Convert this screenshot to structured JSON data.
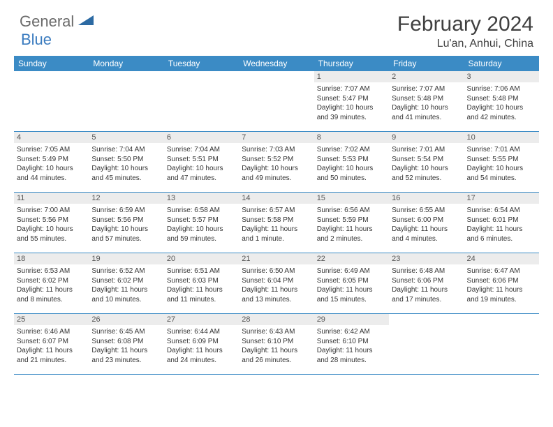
{
  "logo": {
    "text1": "General",
    "text2": "Blue"
  },
  "title": "February 2024",
  "location": "Lu'an, Anhui, China",
  "colors": {
    "header_bar": "#3b8bc5",
    "day_num_bg": "#ececec",
    "border": "#3b8bc5",
    "logo_gray": "#6b6b6b",
    "logo_blue": "#3a7bbf",
    "text": "#404040"
  },
  "weekdays": [
    "Sunday",
    "Monday",
    "Tuesday",
    "Wednesday",
    "Thursday",
    "Friday",
    "Saturday"
  ],
  "weeks": [
    [
      {
        "empty": true
      },
      {
        "empty": true
      },
      {
        "empty": true
      },
      {
        "empty": true
      },
      {
        "day": "1",
        "sunrise": "Sunrise: 7:07 AM",
        "sunset": "Sunset: 5:47 PM",
        "daylight1": "Daylight: 10 hours",
        "daylight2": "and 39 minutes."
      },
      {
        "day": "2",
        "sunrise": "Sunrise: 7:07 AM",
        "sunset": "Sunset: 5:48 PM",
        "daylight1": "Daylight: 10 hours",
        "daylight2": "and 41 minutes."
      },
      {
        "day": "3",
        "sunrise": "Sunrise: 7:06 AM",
        "sunset": "Sunset: 5:48 PM",
        "daylight1": "Daylight: 10 hours",
        "daylight2": "and 42 minutes."
      }
    ],
    [
      {
        "day": "4",
        "sunrise": "Sunrise: 7:05 AM",
        "sunset": "Sunset: 5:49 PM",
        "daylight1": "Daylight: 10 hours",
        "daylight2": "and 44 minutes."
      },
      {
        "day": "5",
        "sunrise": "Sunrise: 7:04 AM",
        "sunset": "Sunset: 5:50 PM",
        "daylight1": "Daylight: 10 hours",
        "daylight2": "and 45 minutes."
      },
      {
        "day": "6",
        "sunrise": "Sunrise: 7:04 AM",
        "sunset": "Sunset: 5:51 PM",
        "daylight1": "Daylight: 10 hours",
        "daylight2": "and 47 minutes."
      },
      {
        "day": "7",
        "sunrise": "Sunrise: 7:03 AM",
        "sunset": "Sunset: 5:52 PM",
        "daylight1": "Daylight: 10 hours",
        "daylight2": "and 49 minutes."
      },
      {
        "day": "8",
        "sunrise": "Sunrise: 7:02 AM",
        "sunset": "Sunset: 5:53 PM",
        "daylight1": "Daylight: 10 hours",
        "daylight2": "and 50 minutes."
      },
      {
        "day": "9",
        "sunrise": "Sunrise: 7:01 AM",
        "sunset": "Sunset: 5:54 PM",
        "daylight1": "Daylight: 10 hours",
        "daylight2": "and 52 minutes."
      },
      {
        "day": "10",
        "sunrise": "Sunrise: 7:01 AM",
        "sunset": "Sunset: 5:55 PM",
        "daylight1": "Daylight: 10 hours",
        "daylight2": "and 54 minutes."
      }
    ],
    [
      {
        "day": "11",
        "sunrise": "Sunrise: 7:00 AM",
        "sunset": "Sunset: 5:56 PM",
        "daylight1": "Daylight: 10 hours",
        "daylight2": "and 55 minutes."
      },
      {
        "day": "12",
        "sunrise": "Sunrise: 6:59 AM",
        "sunset": "Sunset: 5:56 PM",
        "daylight1": "Daylight: 10 hours",
        "daylight2": "and 57 minutes."
      },
      {
        "day": "13",
        "sunrise": "Sunrise: 6:58 AM",
        "sunset": "Sunset: 5:57 PM",
        "daylight1": "Daylight: 10 hours",
        "daylight2": "and 59 minutes."
      },
      {
        "day": "14",
        "sunrise": "Sunrise: 6:57 AM",
        "sunset": "Sunset: 5:58 PM",
        "daylight1": "Daylight: 11 hours",
        "daylight2": "and 1 minute."
      },
      {
        "day": "15",
        "sunrise": "Sunrise: 6:56 AM",
        "sunset": "Sunset: 5:59 PM",
        "daylight1": "Daylight: 11 hours",
        "daylight2": "and 2 minutes."
      },
      {
        "day": "16",
        "sunrise": "Sunrise: 6:55 AM",
        "sunset": "Sunset: 6:00 PM",
        "daylight1": "Daylight: 11 hours",
        "daylight2": "and 4 minutes."
      },
      {
        "day": "17",
        "sunrise": "Sunrise: 6:54 AM",
        "sunset": "Sunset: 6:01 PM",
        "daylight1": "Daylight: 11 hours",
        "daylight2": "and 6 minutes."
      }
    ],
    [
      {
        "day": "18",
        "sunrise": "Sunrise: 6:53 AM",
        "sunset": "Sunset: 6:02 PM",
        "daylight1": "Daylight: 11 hours",
        "daylight2": "and 8 minutes."
      },
      {
        "day": "19",
        "sunrise": "Sunrise: 6:52 AM",
        "sunset": "Sunset: 6:02 PM",
        "daylight1": "Daylight: 11 hours",
        "daylight2": "and 10 minutes."
      },
      {
        "day": "20",
        "sunrise": "Sunrise: 6:51 AM",
        "sunset": "Sunset: 6:03 PM",
        "daylight1": "Daylight: 11 hours",
        "daylight2": "and 11 minutes."
      },
      {
        "day": "21",
        "sunrise": "Sunrise: 6:50 AM",
        "sunset": "Sunset: 6:04 PM",
        "daylight1": "Daylight: 11 hours",
        "daylight2": "and 13 minutes."
      },
      {
        "day": "22",
        "sunrise": "Sunrise: 6:49 AM",
        "sunset": "Sunset: 6:05 PM",
        "daylight1": "Daylight: 11 hours",
        "daylight2": "and 15 minutes."
      },
      {
        "day": "23",
        "sunrise": "Sunrise: 6:48 AM",
        "sunset": "Sunset: 6:06 PM",
        "daylight1": "Daylight: 11 hours",
        "daylight2": "and 17 minutes."
      },
      {
        "day": "24",
        "sunrise": "Sunrise: 6:47 AM",
        "sunset": "Sunset: 6:06 PM",
        "daylight1": "Daylight: 11 hours",
        "daylight2": "and 19 minutes."
      }
    ],
    [
      {
        "day": "25",
        "sunrise": "Sunrise: 6:46 AM",
        "sunset": "Sunset: 6:07 PM",
        "daylight1": "Daylight: 11 hours",
        "daylight2": "and 21 minutes."
      },
      {
        "day": "26",
        "sunrise": "Sunrise: 6:45 AM",
        "sunset": "Sunset: 6:08 PM",
        "daylight1": "Daylight: 11 hours",
        "daylight2": "and 23 minutes."
      },
      {
        "day": "27",
        "sunrise": "Sunrise: 6:44 AM",
        "sunset": "Sunset: 6:09 PM",
        "daylight1": "Daylight: 11 hours",
        "daylight2": "and 24 minutes."
      },
      {
        "day": "28",
        "sunrise": "Sunrise: 6:43 AM",
        "sunset": "Sunset: 6:10 PM",
        "daylight1": "Daylight: 11 hours",
        "daylight2": "and 26 minutes."
      },
      {
        "day": "29",
        "sunrise": "Sunrise: 6:42 AM",
        "sunset": "Sunset: 6:10 PM",
        "daylight1": "Daylight: 11 hours",
        "daylight2": "and 28 minutes."
      },
      {
        "empty": true
      },
      {
        "empty": true
      }
    ]
  ]
}
